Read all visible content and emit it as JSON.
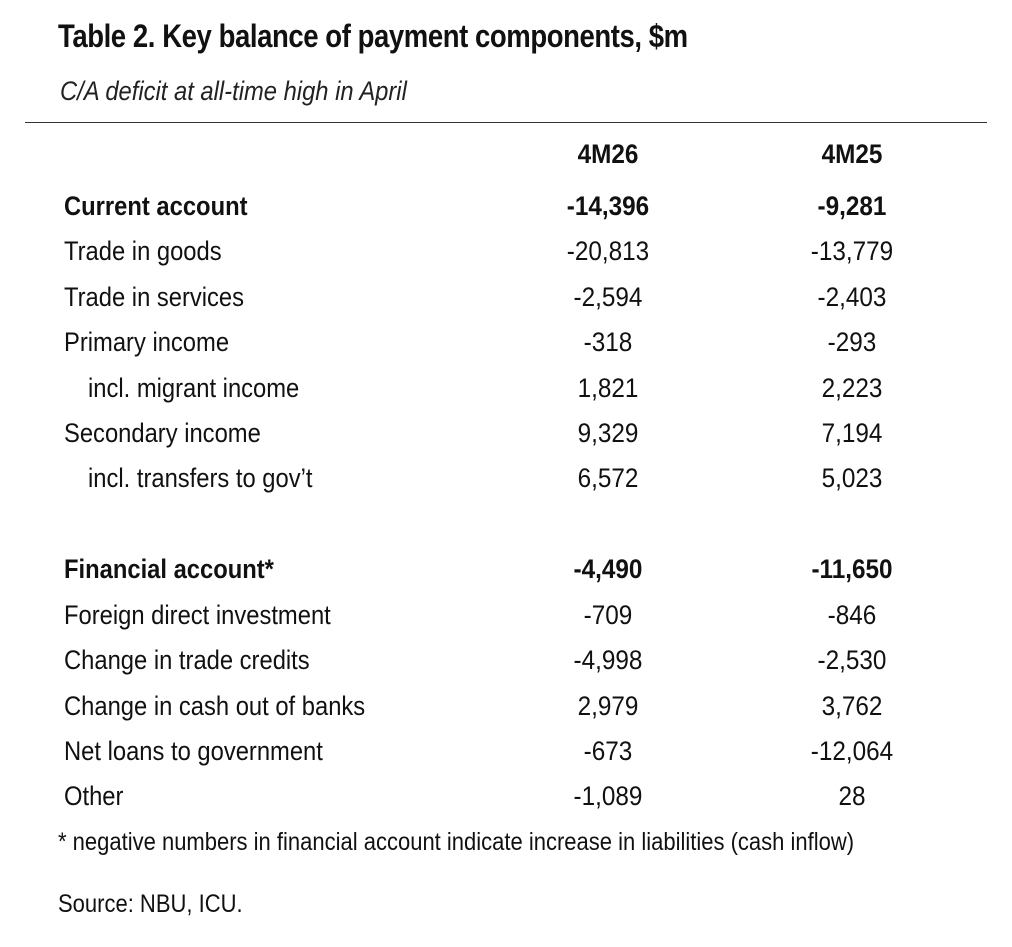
{
  "title": "Table 2. Key balance of payment components, $m",
  "subtitle": "C/A deficit at all-time high in April",
  "columns": [
    "4M26",
    "4M25"
  ],
  "rows": [
    {
      "label": "Current account",
      "v1": "-14,396",
      "v2": "-9,281",
      "bold": true,
      "indent": false
    },
    {
      "label": "Trade in goods",
      "v1": "-20,813",
      "v2": "-13,779",
      "bold": false,
      "indent": false
    },
    {
      "label": "Trade in services",
      "v1": "-2,594",
      "v2": "-2,403",
      "bold": false,
      "indent": false
    },
    {
      "label": "Primary income",
      "v1": "-318",
      "v2": "-293",
      "bold": false,
      "indent": false
    },
    {
      "label": "incl. migrant income",
      "v1": "1,821",
      "v2": "2,223",
      "bold": false,
      "indent": true
    },
    {
      "label": "Secondary income",
      "v1": "9,329",
      "v2": "7,194",
      "bold": false,
      "indent": false
    },
    {
      "label": "incl. transfers to gov’t",
      "v1": "6,572",
      "v2": "5,023",
      "bold": false,
      "indent": true
    },
    {
      "label": "Financial account*",
      "v1": "-4,490",
      "v2": "-11,650",
      "bold": true,
      "indent": false
    },
    {
      "label": "Foreign direct investment",
      "v1": "-709",
      "v2": "-846",
      "bold": false,
      "indent": false
    },
    {
      "label": "Change in trade credits",
      "v1": "-4,998",
      "v2": "-2,530",
      "bold": false,
      "indent": false
    },
    {
      "label": "Change in cash out of banks",
      "v1": "2,979",
      "v2": "3,762",
      "bold": false,
      "indent": false
    },
    {
      "label": "Net loans to government",
      "v1": "-673",
      "v2": "-12,064",
      "bold": false,
      "indent": false
    },
    {
      "label": "Other",
      "v1": "-1,089",
      "v2": "28",
      "bold": false,
      "indent": false
    }
  ],
  "footnote": "* negative numbers in financial account indicate increase in liabilities (cash inflow)",
  "source": "Source: NBU, ICU."
}
